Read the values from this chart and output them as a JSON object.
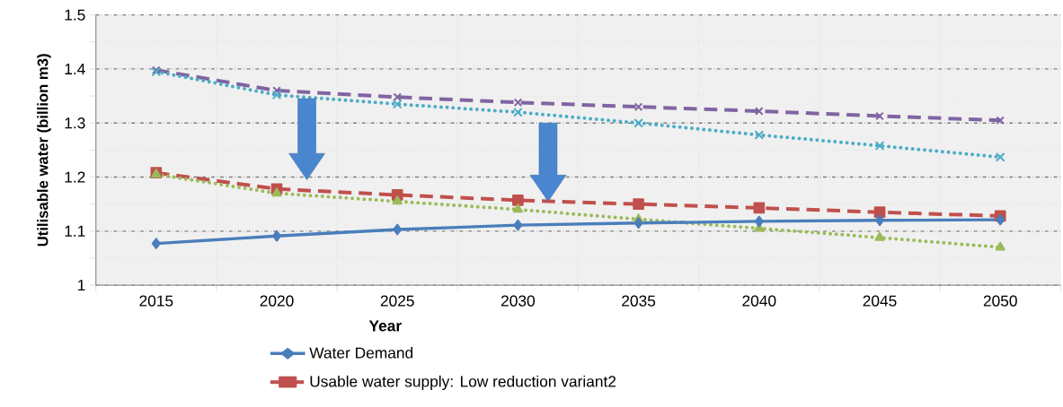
{
  "chart_data": {
    "type": "line",
    "xlabel": "Year",
    "ylabel": "Utilisable water (billion m3)",
    "categories": [
      "2015",
      "2020",
      "2025",
      "2030",
      "2035",
      "2040",
      "2045",
      "2050"
    ],
    "ylim": [
      1,
      1.5
    ],
    "yticks": [
      1,
      1.1,
      1.2,
      1.3,
      1.4,
      1.5
    ],
    "grid": true,
    "legend": "bottom",
    "series": [
      {
        "name": "Water Demand",
        "color": "#4a7ebb",
        "marker": "diamond",
        "line_style": "solid",
        "values": [
          1.077,
          1.091,
          1.103,
          1.111,
          1.115,
          1.118,
          1.12,
          1.121
        ]
      },
      {
        "name": "Usable water supply: Low reduction variant2",
        "color": "#c0504d",
        "marker": "square",
        "line_style": "dashed",
        "values": [
          1.208,
          1.178,
          1.167,
          1.157,
          1.15,
          1.143,
          1.135,
          1.128
        ]
      },
      {
        "color": "#8064a2",
        "marker": "cross",
        "line_style": "dashed",
        "values": [
          1.398,
          1.36,
          1.348,
          1.338,
          1.33,
          1.322,
          1.313,
          1.305
        ]
      },
      {
        "color": "#4bacc6",
        "marker": "cross",
        "line_style": "dotted",
        "values": [
          1.395,
          1.352,
          1.335,
          1.32,
          1.3,
          1.278,
          1.258,
          1.237
        ]
      },
      {
        "color": "#9bbb59",
        "marker": "triangle",
        "line_style": "dotted",
        "values": [
          1.205,
          1.17,
          1.155,
          1.14,
          1.122,
          1.105,
          1.088,
          1.07
        ]
      }
    ]
  }
}
